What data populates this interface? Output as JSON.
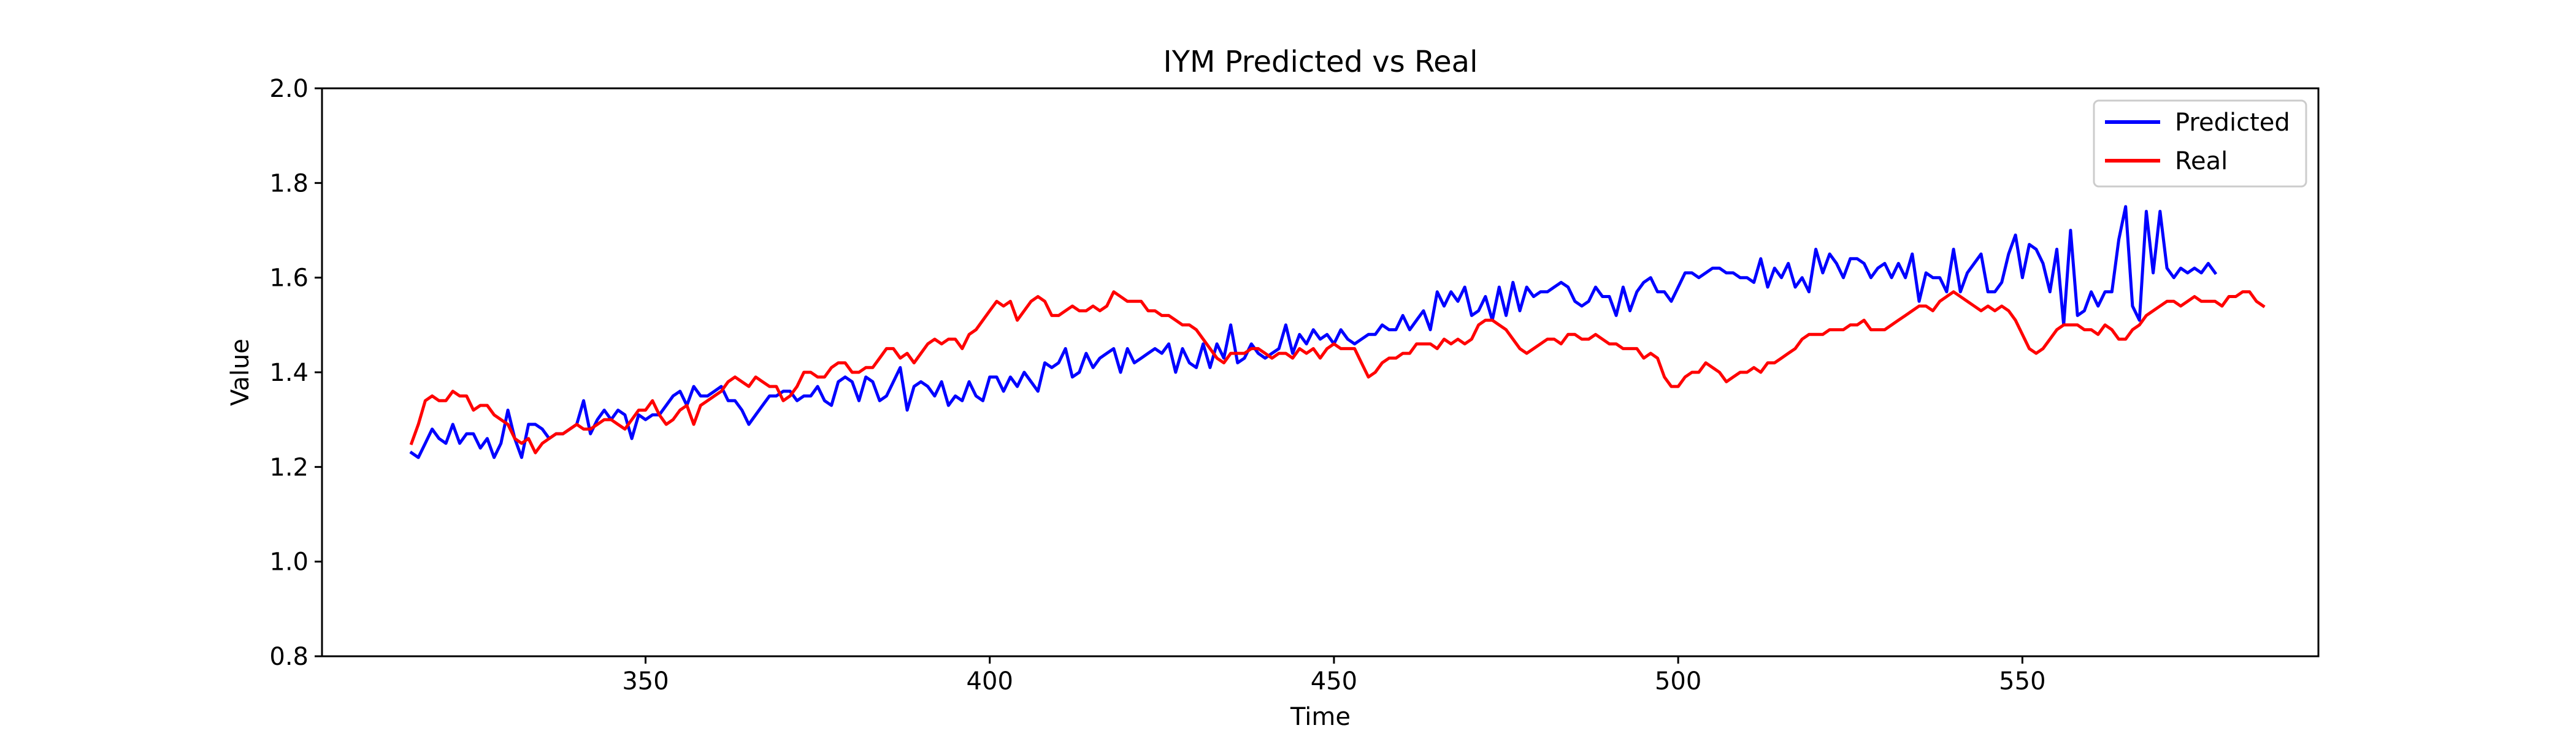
{
  "chart_data": {
    "type": "line",
    "title": "IYM Predicted vs Real",
    "xlabel": "Time",
    "ylabel": "Value",
    "xlim": [
      303,
      593
    ],
    "ylim": [
      0.8,
      2.0
    ],
    "xticks": [
      350,
      400,
      450,
      500,
      550
    ],
    "yticks": [
      0.8,
      1.0,
      1.2,
      1.4,
      1.6,
      1.8,
      2.0
    ],
    "xtick_labels": [
      "350",
      "400",
      "450",
      "500",
      "550"
    ],
    "ytick_labels": [
      "0.8",
      "1.0",
      "1.2",
      "1.4",
      "1.6",
      "1.8",
      "2.0"
    ],
    "grid": false,
    "legend_position": "upper right",
    "x_start": 316,
    "x_step": 1,
    "series": [
      {
        "name": "Predicted",
        "color": "#0000ff",
        "values": [
          1.23,
          1.22,
          1.25,
          1.28,
          1.26,
          1.25,
          1.29,
          1.25,
          1.27,
          1.27,
          1.24,
          1.26,
          1.22,
          1.25,
          1.32,
          1.26,
          1.22,
          1.29,
          1.29,
          1.28,
          1.26,
          1.27,
          1.27,
          1.28,
          1.29,
          1.34,
          1.27,
          1.3,
          1.32,
          1.3,
          1.32,
          1.31,
          1.26,
          1.31,
          1.3,
          1.31,
          1.31,
          1.33,
          1.35,
          1.36,
          1.33,
          1.37,
          1.35,
          1.35,
          1.36,
          1.37,
          1.34,
          1.34,
          1.32,
          1.29,
          1.31,
          1.33,
          1.35,
          1.35,
          1.36,
          1.36,
          1.34,
          1.35,
          1.35,
          1.37,
          1.34,
          1.33,
          1.38,
          1.39,
          1.38,
          1.34,
          1.39,
          1.38,
          1.34,
          1.35,
          1.38,
          1.41,
          1.32,
          1.37,
          1.38,
          1.37,
          1.35,
          1.38,
          1.33,
          1.35,
          1.34,
          1.38,
          1.35,
          1.34,
          1.39,
          1.39,
          1.36,
          1.39,
          1.37,
          1.4,
          1.38,
          1.36,
          1.42,
          1.41,
          1.42,
          1.45,
          1.39,
          1.4,
          1.44,
          1.41,
          1.43,
          1.44,
          1.45,
          1.4,
          1.45,
          1.42,
          1.43,
          1.44,
          1.45,
          1.44,
          1.46,
          1.4,
          1.45,
          1.42,
          1.41,
          1.46,
          1.41,
          1.46,
          1.43,
          1.5,
          1.42,
          1.43,
          1.46,
          1.44,
          1.43,
          1.44,
          1.45,
          1.5,
          1.44,
          1.48,
          1.46,
          1.49,
          1.47,
          1.48,
          1.46,
          1.49,
          1.47,
          1.46,
          1.47,
          1.48,
          1.48,
          1.5,
          1.49,
          1.49,
          1.52,
          1.49,
          1.51,
          1.53,
          1.49,
          1.57,
          1.54,
          1.57,
          1.55,
          1.58,
          1.52,
          1.53,
          1.56,
          1.51,
          1.58,
          1.52,
          1.59,
          1.53,
          1.58,
          1.56,
          1.57,
          1.57,
          1.58,
          1.59,
          1.58,
          1.55,
          1.54,
          1.55,
          1.58,
          1.56,
          1.56,
          1.52,
          1.58,
          1.53,
          1.57,
          1.59,
          1.6,
          1.57,
          1.57,
          1.55,
          1.58,
          1.61,
          1.61,
          1.6,
          1.61,
          1.62,
          1.62,
          1.61,
          1.61,
          1.6,
          1.6,
          1.59,
          1.64,
          1.58,
          1.62,
          1.6,
          1.63,
          1.58,
          1.6,
          1.57,
          1.66,
          1.61,
          1.65,
          1.63,
          1.6,
          1.64,
          1.64,
          1.63,
          1.6,
          1.62,
          1.63,
          1.6,
          1.63,
          1.6,
          1.65,
          1.55,
          1.61,
          1.6,
          1.6,
          1.57,
          1.66,
          1.57,
          1.61,
          1.63,
          1.65,
          1.57,
          1.57,
          1.59,
          1.65,
          1.69,
          1.6,
          1.67,
          1.66,
          1.63,
          1.57,
          1.66,
          1.5,
          1.7,
          1.52,
          1.53,
          1.57,
          1.54,
          1.57,
          1.57,
          1.68,
          1.75,
          1.54,
          1.51,
          1.74,
          1.61,
          1.74,
          1.62,
          1.6,
          1.62,
          1.61,
          1.62,
          1.61,
          1.63,
          1.61
        ]
      },
      {
        "name": "Real",
        "color": "#ff0000",
        "values": [
          1.25,
          1.29,
          1.34,
          1.35,
          1.34,
          1.34,
          1.36,
          1.35,
          1.35,
          1.32,
          1.33,
          1.33,
          1.31,
          1.3,
          1.29,
          1.26,
          1.25,
          1.26,
          1.23,
          1.25,
          1.26,
          1.27,
          1.27,
          1.28,
          1.29,
          1.28,
          1.28,
          1.29,
          1.3,
          1.3,
          1.29,
          1.28,
          1.3,
          1.32,
          1.32,
          1.34,
          1.31,
          1.29,
          1.3,
          1.32,
          1.33,
          1.29,
          1.33,
          1.34,
          1.35,
          1.36,
          1.38,
          1.39,
          1.38,
          1.37,
          1.39,
          1.38,
          1.37,
          1.37,
          1.34,
          1.35,
          1.37,
          1.4,
          1.4,
          1.39,
          1.39,
          1.41,
          1.42,
          1.42,
          1.4,
          1.4,
          1.41,
          1.41,
          1.43,
          1.45,
          1.45,
          1.43,
          1.44,
          1.42,
          1.44,
          1.46,
          1.47,
          1.46,
          1.47,
          1.47,
          1.45,
          1.48,
          1.49,
          1.51,
          1.53,
          1.55,
          1.54,
          1.55,
          1.51,
          1.53,
          1.55,
          1.56,
          1.55,
          1.52,
          1.52,
          1.53,
          1.54,
          1.53,
          1.53,
          1.54,
          1.53,
          1.54,
          1.57,
          1.56,
          1.55,
          1.55,
          1.55,
          1.53,
          1.53,
          1.52,
          1.52,
          1.51,
          1.5,
          1.5,
          1.49,
          1.47,
          1.45,
          1.43,
          1.42,
          1.44,
          1.44,
          1.44,
          1.45,
          1.45,
          1.44,
          1.43,
          1.44,
          1.44,
          1.43,
          1.45,
          1.44,
          1.45,
          1.43,
          1.45,
          1.46,
          1.45,
          1.45,
          1.45,
          1.42,
          1.39,
          1.4,
          1.42,
          1.43,
          1.43,
          1.44,
          1.44,
          1.46,
          1.46,
          1.46,
          1.45,
          1.47,
          1.46,
          1.47,
          1.46,
          1.47,
          1.5,
          1.51,
          1.51,
          1.5,
          1.49,
          1.47,
          1.45,
          1.44,
          1.45,
          1.46,
          1.47,
          1.47,
          1.46,
          1.48,
          1.48,
          1.47,
          1.47,
          1.48,
          1.47,
          1.46,
          1.46,
          1.45,
          1.45,
          1.45,
          1.43,
          1.44,
          1.43,
          1.39,
          1.37,
          1.37,
          1.39,
          1.4,
          1.4,
          1.42,
          1.41,
          1.4,
          1.38,
          1.39,
          1.4,
          1.4,
          1.41,
          1.4,
          1.42,
          1.42,
          1.43,
          1.44,
          1.45,
          1.47,
          1.48,
          1.48,
          1.48,
          1.49,
          1.49,
          1.49,
          1.5,
          1.5,
          1.51,
          1.49,
          1.49,
          1.49,
          1.5,
          1.51,
          1.52,
          1.53,
          1.54,
          1.54,
          1.53,
          1.55,
          1.56,
          1.57,
          1.56,
          1.55,
          1.54,
          1.53,
          1.54,
          1.53,
          1.54,
          1.53,
          1.51,
          1.48,
          1.45,
          1.44,
          1.45,
          1.47,
          1.49,
          1.5,
          1.5,
          1.5,
          1.49,
          1.49,
          1.48,
          1.5,
          1.49,
          1.47,
          1.47,
          1.49,
          1.5,
          1.52,
          1.53,
          1.54,
          1.55,
          1.55,
          1.54,
          1.55,
          1.56,
          1.55,
          1.55,
          1.55,
          1.54,
          1.56,
          1.56,
          1.57,
          1.57,
          1.55,
          1.54
        ]
      }
    ]
  }
}
